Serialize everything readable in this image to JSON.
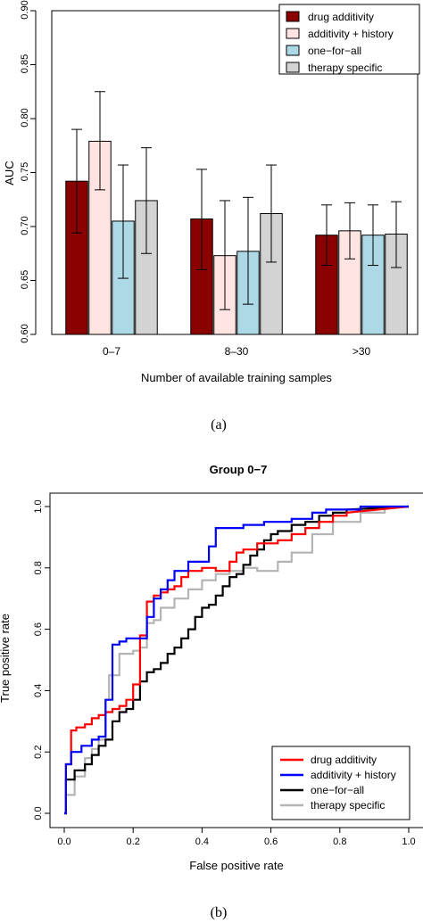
{
  "figure": {
    "caption_a": "(a)",
    "caption_b": "(b)"
  },
  "chart_data": [
    {
      "type": "bar",
      "title": "",
      "xlabel": "Number of available training samples",
      "ylabel": "AUC",
      "ylim": [
        0.6,
        0.9
      ],
      "yticks": [
        "0.60",
        "0.65",
        "0.70",
        "0.75",
        "0.80",
        "0.85",
        "0.90"
      ],
      "categories": [
        "0–7",
        "8–30",
        ">30"
      ],
      "legend_position": "top-right",
      "series": [
        {
          "name": "drug additivity",
          "color": "#8b0000",
          "values": [
            0.742,
            0.707,
            0.692
          ],
          "err_low": [
            0.694,
            0.66,
            0.664
          ],
          "err_high": [
            0.79,
            0.753,
            0.72
          ]
        },
        {
          "name": "additivity + history",
          "color": "#ffe4e1",
          "values": [
            0.779,
            0.673,
            0.696
          ],
          "err_low": [
            0.734,
            0.623,
            0.67
          ],
          "err_high": [
            0.825,
            0.724,
            0.722
          ]
        },
        {
          "name": "one−for−all",
          "color": "#add8e6",
          "values": [
            0.705,
            0.677,
            0.692
          ],
          "err_low": [
            0.652,
            0.628,
            0.664
          ],
          "err_high": [
            0.757,
            0.727,
            0.72
          ]
        },
        {
          "name": "therapy specific",
          "color": "#d3d3d3",
          "values": [
            0.724,
            0.712,
            0.693
          ],
          "err_low": [
            0.675,
            0.667,
            0.662
          ],
          "err_high": [
            0.773,
            0.757,
            0.723
          ]
        }
      ]
    },
    {
      "type": "line",
      "title": "Group 0−7",
      "xlabel": "False positive rate",
      "ylabel": "True positive rate",
      "xlim": [
        0,
        1
      ],
      "ylim": [
        0,
        1
      ],
      "xticks": [
        "0.0",
        "0.2",
        "0.4",
        "0.6",
        "0.8",
        "1.0"
      ],
      "yticks": [
        "0.0",
        "0.2",
        "0.4",
        "0.6",
        "0.8",
        "1.0"
      ],
      "legend_position": "bottom-right",
      "series": [
        {
          "name": "drug additivity",
          "color": "#ff0000",
          "x": [
            0,
            0.005,
            0.005,
            0.02,
            0.02,
            0.035,
            0.035,
            0.06,
            0.06,
            0.08,
            0.08,
            0.1,
            0.1,
            0.12,
            0.12,
            0.14,
            0.14,
            0.16,
            0.16,
            0.18,
            0.18,
            0.2,
            0.2,
            0.22,
            0.22,
            0.24,
            0.24,
            0.26,
            0.26,
            0.28,
            0.28,
            0.3,
            0.3,
            0.32,
            0.32,
            0.34,
            0.34,
            0.36,
            0.36,
            0.4,
            0.4,
            0.44,
            0.44,
            0.48,
            0.48,
            0.5,
            0.5,
            0.52,
            0.52,
            0.56,
            0.56,
            0.62,
            0.62,
            0.66,
            0.66,
            0.7,
            0.7,
            0.74,
            0.74,
            0.78,
            0.78,
            0.82,
            0.82,
            1.0
          ],
          "y": [
            0,
            0,
            0.16,
            0.16,
            0.27,
            0.27,
            0.28,
            0.28,
            0.29,
            0.29,
            0.31,
            0.31,
            0.32,
            0.32,
            0.33,
            0.33,
            0.34,
            0.34,
            0.35,
            0.35,
            0.37,
            0.37,
            0.42,
            0.42,
            0.58,
            0.58,
            0.69,
            0.69,
            0.71,
            0.71,
            0.72,
            0.72,
            0.73,
            0.73,
            0.74,
            0.74,
            0.77,
            0.77,
            0.79,
            0.79,
            0.8,
            0.8,
            0.79,
            0.79,
            0.82,
            0.82,
            0.85,
            0.85,
            0.86,
            0.86,
            0.88,
            0.88,
            0.89,
            0.89,
            0.91,
            0.91,
            0.93,
            0.93,
            0.95,
            0.95,
            0.97,
            0.97,
            0.98,
            1.0
          ]
        },
        {
          "name": "additivity + history",
          "color": "#0000ff",
          "x": [
            0,
            0.005,
            0.005,
            0.02,
            0.02,
            0.05,
            0.05,
            0.08,
            0.08,
            0.1,
            0.1,
            0.12,
            0.12,
            0.14,
            0.14,
            0.16,
            0.16,
            0.18,
            0.18,
            0.24,
            0.24,
            0.26,
            0.26,
            0.28,
            0.28,
            0.3,
            0.3,
            0.32,
            0.32,
            0.36,
            0.36,
            0.42,
            0.42,
            0.44,
            0.44,
            0.52,
            0.52,
            0.58,
            0.58,
            0.66,
            0.66,
            0.72,
            0.72,
            0.76,
            0.76,
            0.86,
            0.86,
            1.0
          ],
          "y": [
            0,
            0,
            0.16,
            0.16,
            0.2,
            0.2,
            0.22,
            0.22,
            0.24,
            0.24,
            0.25,
            0.25,
            0.37,
            0.37,
            0.55,
            0.55,
            0.56,
            0.56,
            0.57,
            0.57,
            0.64,
            0.64,
            0.7,
            0.7,
            0.73,
            0.73,
            0.76,
            0.76,
            0.79,
            0.79,
            0.82,
            0.82,
            0.87,
            0.87,
            0.93,
            0.93,
            0.94,
            0.94,
            0.95,
            0.95,
            0.96,
            0.96,
            0.98,
            0.98,
            0.99,
            0.99,
            1.0,
            1.0
          ]
        },
        {
          "name": "one−for−all",
          "color": "#000000",
          "x": [
            0,
            0.005,
            0.005,
            0.03,
            0.03,
            0.06,
            0.06,
            0.08,
            0.08,
            0.1,
            0.1,
            0.12,
            0.12,
            0.14,
            0.14,
            0.16,
            0.16,
            0.18,
            0.18,
            0.2,
            0.2,
            0.22,
            0.22,
            0.24,
            0.24,
            0.26,
            0.26,
            0.28,
            0.28,
            0.3,
            0.3,
            0.32,
            0.32,
            0.34,
            0.34,
            0.36,
            0.36,
            0.38,
            0.38,
            0.4,
            0.4,
            0.42,
            0.42,
            0.44,
            0.44,
            0.46,
            0.46,
            0.48,
            0.48,
            0.5,
            0.5,
            0.52,
            0.52,
            0.54,
            0.54,
            0.56,
            0.56,
            0.58,
            0.58,
            0.6,
            0.6,
            0.62,
            0.62,
            0.66,
            0.66,
            0.7,
            0.7,
            0.74,
            0.74,
            0.78,
            0.78,
            0.82,
            0.82,
            1.0
          ],
          "y": [
            0,
            0,
            0.11,
            0.11,
            0.14,
            0.14,
            0.16,
            0.16,
            0.19,
            0.19,
            0.22,
            0.22,
            0.24,
            0.24,
            0.3,
            0.3,
            0.33,
            0.33,
            0.34,
            0.34,
            0.37,
            0.37,
            0.43,
            0.43,
            0.46,
            0.46,
            0.47,
            0.47,
            0.49,
            0.49,
            0.52,
            0.52,
            0.54,
            0.54,
            0.57,
            0.57,
            0.6,
            0.6,
            0.64,
            0.64,
            0.67,
            0.67,
            0.68,
            0.68,
            0.71,
            0.71,
            0.74,
            0.74,
            0.77,
            0.77,
            0.78,
            0.78,
            0.81,
            0.81,
            0.84,
            0.84,
            0.86,
            0.86,
            0.89,
            0.89,
            0.91,
            0.91,
            0.92,
            0.92,
            0.94,
            0.94,
            0.95,
            0.95,
            0.97,
            0.97,
            0.98,
            0.98,
            0.99,
            1.0
          ]
        },
        {
          "name": "therapy specific",
          "color": "#b4b4b4",
          "x": [
            0,
            0.005,
            0.005,
            0.03,
            0.03,
            0.06,
            0.06,
            0.08,
            0.08,
            0.1,
            0.1,
            0.12,
            0.12,
            0.13,
            0.13,
            0.16,
            0.16,
            0.2,
            0.2,
            0.22,
            0.22,
            0.24,
            0.24,
            0.26,
            0.26,
            0.28,
            0.28,
            0.32,
            0.32,
            0.36,
            0.36,
            0.4,
            0.4,
            0.44,
            0.44,
            0.48,
            0.48,
            0.52,
            0.52,
            0.56,
            0.56,
            0.62,
            0.62,
            0.66,
            0.66,
            0.72,
            0.72,
            0.78,
            0.78,
            0.86,
            0.86,
            0.93,
            0.93,
            1.0
          ],
          "y": [
            0,
            0,
            0.06,
            0.06,
            0.12,
            0.12,
            0.18,
            0.18,
            0.21,
            0.21,
            0.24,
            0.24,
            0.37,
            0.37,
            0.45,
            0.45,
            0.52,
            0.52,
            0.53,
            0.53,
            0.54,
            0.54,
            0.62,
            0.62,
            0.63,
            0.63,
            0.67,
            0.67,
            0.7,
            0.7,
            0.73,
            0.73,
            0.76,
            0.76,
            0.78,
            0.78,
            0.79,
            0.79,
            0.8,
            0.8,
            0.79,
            0.79,
            0.82,
            0.82,
            0.85,
            0.85,
            0.91,
            0.91,
            0.95,
            0.95,
            0.98,
            0.98,
            1.0,
            1.0
          ]
        }
      ]
    }
  ]
}
